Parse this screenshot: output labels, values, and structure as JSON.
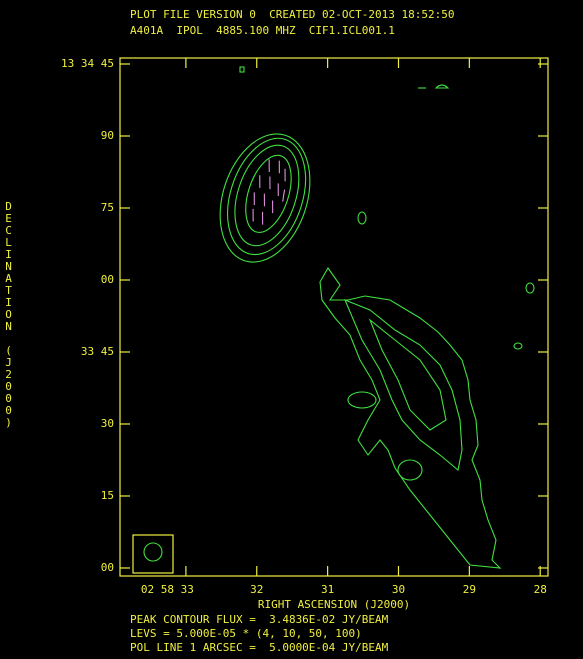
{
  "chart_data": {
    "type": "contour",
    "title": "PLOT FILE VERSION 0  CREATED 02-OCT-2013 18:52:50",
    "subtitle": "A401A  IPOL  4885.100 MHZ  CIF1.ICL001.1",
    "xlabel": "RIGHT ASCENSION (J2000)",
    "ylabel": "DECLINATION (J2000)",
    "annotations": [
      "PEAK CONTOUR FLUX =  3.4836E-02 JY/BEAM",
      "LEVS = 5.000E-05 * (4, 10, 50, 100)",
      "POL LINE 1 ARCSEC =  5.0000E-04 JY/BEAM"
    ],
    "xlim": [
      33.93,
      27.89
    ],
    "xticks": [
      {
        "value": 33,
        "label": "02 58 33"
      },
      32,
      31,
      30,
      29,
      28
    ],
    "ylim": [
      -1.67,
      106.25
    ],
    "yticks": [
      {
        "value": 105,
        "label": "13 34 45"
      },
      90,
      75,
      {
        "value": 60,
        "label": "00"
      },
      {
        "value": 45,
        "label": "33 45"
      },
      30,
      15,
      {
        "value": 0,
        "label": "00"
      }
    ]
  }
}
